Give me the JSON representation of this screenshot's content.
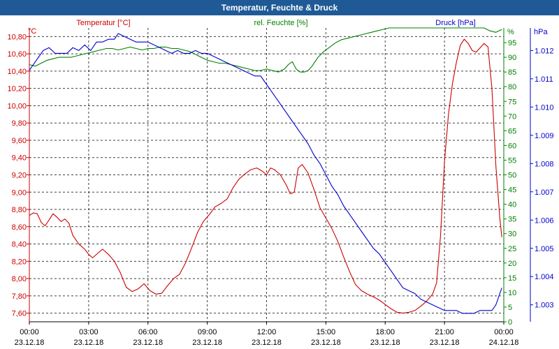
{
  "title": "Temperatur, Feuchte & Druck",
  "colors": {
    "title_bg": "#1f5a96",
    "temperature": "#cc0000",
    "humidity": "#008000",
    "pressure": "#0000cc",
    "grid": "#000000"
  },
  "chart_data": {
    "type": "line",
    "title": "Temperatur, Feuchte & Druck",
    "x_ticks": [
      {
        "time": "00:00",
        "date": "23.12.18",
        "hour": 0
      },
      {
        "time": "03:00",
        "date": "23.12.18",
        "hour": 3
      },
      {
        "time": "06:00",
        "date": "23.12.18",
        "hour": 6
      },
      {
        "time": "09:00",
        "date": "23.12.18",
        "hour": 9
      },
      {
        "time": "12:00",
        "date": "23.12.18",
        "hour": 12
      },
      {
        "time": "15:00",
        "date": "23.12.18",
        "hour": 15
      },
      {
        "time": "18:00",
        "date": "23.12.18",
        "hour": 18
      },
      {
        "time": "21:00",
        "date": "23.12.18",
        "hour": 21
      },
      {
        "time": "00:00",
        "date": "24.12.18",
        "hour": 24
      }
    ],
    "xlim": [
      0,
      24
    ],
    "axes": {
      "temperature": {
        "label": "Temperatur [°C]",
        "unit": "°C",
        "range": [
          7.5,
          10.9
        ],
        "ticks": [
          "7,60",
          "7,80",
          "8,00",
          "8,20",
          "8,40",
          "8,60",
          "8,80",
          "9,00",
          "9,20",
          "9,40",
          "9,60",
          "9,80",
          "10,00",
          "10,20",
          "10,40",
          "10,60",
          "10,80"
        ],
        "tick_values": [
          7.6,
          7.8,
          8.0,
          8.2,
          8.4,
          8.6,
          8.8,
          9.0,
          9.2,
          9.4,
          9.6,
          9.8,
          10.0,
          10.2,
          10.4,
          10.6,
          10.8
        ]
      },
      "humidity": {
        "label": "rel. Feuchte [%]",
        "unit": "%",
        "range": [
          0,
          100
        ],
        "ticks": [
          "0",
          "5",
          "10",
          "15",
          "20",
          "25",
          "30",
          "35",
          "40",
          "45",
          "50",
          "55",
          "60",
          "65",
          "70",
          "75",
          "80",
          "85",
          "90",
          "95"
        ],
        "tick_values": [
          0,
          5,
          10,
          15,
          20,
          25,
          30,
          35,
          40,
          45,
          50,
          55,
          60,
          65,
          70,
          75,
          80,
          85,
          90,
          95
        ]
      },
      "pressure": {
        "label": "Druck [hPa]",
        "unit": "hPa",
        "range": [
          1002.4,
          1012.8
        ],
        "ticks": [
          "1.003",
          "1.004",
          "1.005",
          "1.006",
          "1.007",
          "1.008",
          "1.009",
          "1.010",
          "1.011",
          "1.012"
        ],
        "tick_values": [
          1003,
          1004,
          1005,
          1006,
          1007,
          1008,
          1009,
          1010,
          1011,
          1012
        ]
      }
    },
    "series": [
      {
        "name": "Temperatur [°C]",
        "axis": "temperature",
        "points": [
          [
            0,
            8.73
          ],
          [
            0.2,
            8.76
          ],
          [
            0.4,
            8.75
          ],
          [
            0.6,
            8.65
          ],
          [
            0.8,
            8.61
          ],
          [
            1.0,
            8.68
          ],
          [
            1.2,
            8.75
          ],
          [
            1.4,
            8.71
          ],
          [
            1.6,
            8.66
          ],
          [
            1.8,
            8.69
          ],
          [
            2.0,
            8.64
          ],
          [
            2.2,
            8.5
          ],
          [
            2.5,
            8.4
          ],
          [
            2.8,
            8.34
          ],
          [
            3.0,
            8.28
          ],
          [
            3.2,
            8.24
          ],
          [
            3.5,
            8.3
          ],
          [
            3.7,
            8.34
          ],
          [
            4.0,
            8.28
          ],
          [
            4.3,
            8.2
          ],
          [
            4.6,
            8.07
          ],
          [
            4.9,
            7.9
          ],
          [
            5.2,
            7.85
          ],
          [
            5.5,
            7.88
          ],
          [
            5.8,
            7.94
          ],
          [
            6.1,
            7.86
          ],
          [
            6.4,
            7.82
          ],
          [
            6.7,
            7.83
          ],
          [
            7.0,
            7.92
          ],
          [
            7.3,
            8.0
          ],
          [
            7.6,
            8.05
          ],
          [
            7.9,
            8.18
          ],
          [
            8.2,
            8.35
          ],
          [
            8.5,
            8.53
          ],
          [
            8.8,
            8.66
          ],
          [
            9.1,
            8.74
          ],
          [
            9.4,
            8.83
          ],
          [
            9.7,
            8.87
          ],
          [
            10.0,
            8.92
          ],
          [
            10.3,
            9.05
          ],
          [
            10.6,
            9.15
          ],
          [
            10.9,
            9.21
          ],
          [
            11.2,
            9.26
          ],
          [
            11.5,
            9.28
          ],
          [
            11.8,
            9.24
          ],
          [
            12.0,
            9.2
          ],
          [
            12.2,
            9.28
          ],
          [
            12.4,
            9.26
          ],
          [
            12.7,
            9.2
          ],
          [
            13.0,
            9.08
          ],
          [
            13.2,
            8.98
          ],
          [
            13.4,
            9.0
          ],
          [
            13.6,
            9.28
          ],
          [
            13.8,
            9.32
          ],
          [
            14.1,
            9.22
          ],
          [
            14.4,
            9.03
          ],
          [
            14.7,
            8.82
          ],
          [
            15.0,
            8.7
          ],
          [
            15.3,
            8.58
          ],
          [
            15.6,
            8.43
          ],
          [
            15.9,
            8.25
          ],
          [
            16.2,
            8.08
          ],
          [
            16.5,
            7.93
          ],
          [
            16.8,
            7.86
          ],
          [
            17.1,
            7.82
          ],
          [
            17.4,
            7.79
          ],
          [
            17.7,
            7.75
          ],
          [
            18.0,
            7.7
          ],
          [
            18.3,
            7.65
          ],
          [
            18.6,
            7.61
          ],
          [
            18.9,
            7.6
          ],
          [
            19.2,
            7.61
          ],
          [
            19.5,
            7.63
          ],
          [
            19.8,
            7.68
          ],
          [
            20.1,
            7.74
          ],
          [
            20.4,
            7.82
          ],
          [
            20.6,
            7.95
          ],
          [
            20.8,
            8.5
          ],
          [
            21.0,
            9.35
          ],
          [
            21.2,
            9.9
          ],
          [
            21.4,
            10.25
          ],
          [
            21.6,
            10.5
          ],
          [
            21.8,
            10.7
          ],
          [
            22.0,
            10.77
          ],
          [
            22.2,
            10.72
          ],
          [
            22.4,
            10.64
          ],
          [
            22.6,
            10.62
          ],
          [
            22.8,
            10.67
          ],
          [
            23.0,
            10.72
          ],
          [
            23.2,
            10.68
          ],
          [
            23.4,
            10.2
          ],
          [
            23.6,
            9.3
          ],
          [
            23.8,
            8.7
          ],
          [
            23.9,
            8.48
          ]
        ]
      },
      {
        "name": "rel. Feuchte [%]",
        "axis": "humidity",
        "points": [
          [
            0,
            87.5
          ],
          [
            0.3,
            87.0
          ],
          [
            0.6,
            88.0
          ],
          [
            0.9,
            89.0
          ],
          [
            1.2,
            89.5
          ],
          [
            1.5,
            90.0
          ],
          [
            1.8,
            90.0
          ],
          [
            2.1,
            90.0
          ],
          [
            2.4,
            90.5
          ],
          [
            2.7,
            91.0
          ],
          [
            3.0,
            91.5
          ],
          [
            3.3,
            92.0
          ],
          [
            3.6,
            92.5
          ],
          [
            3.9,
            93.0
          ],
          [
            4.2,
            93.0
          ],
          [
            4.5,
            92.5
          ],
          [
            4.8,
            93.0
          ],
          [
            5.1,
            93.5
          ],
          [
            5.4,
            93.0
          ],
          [
            5.7,
            92.5
          ],
          [
            6.0,
            93.0
          ],
          [
            6.3,
            93.0
          ],
          [
            6.6,
            93.5
          ],
          [
            6.9,
            93.5
          ],
          [
            7.2,
            93.0
          ],
          [
            7.5,
            93.0
          ],
          [
            7.8,
            92.5
          ],
          [
            8.1,
            92.0
          ],
          [
            8.4,
            91.0
          ],
          [
            8.7,
            90.0
          ],
          [
            9.0,
            89.0
          ],
          [
            9.3,
            88.5
          ],
          [
            9.6,
            88.0
          ],
          [
            9.9,
            88.0
          ],
          [
            10.2,
            87.5
          ],
          [
            10.5,
            87.0
          ],
          [
            10.8,
            86.5
          ],
          [
            11.1,
            86.0
          ],
          [
            11.4,
            85.5
          ],
          [
            11.7,
            85.5
          ],
          [
            12.0,
            86.0
          ],
          [
            12.3,
            85.5
          ],
          [
            12.6,
            85.0
          ],
          [
            12.9,
            86.0
          ],
          [
            13.1,
            87.5
          ],
          [
            13.3,
            88.5
          ],
          [
            13.5,
            86.0
          ],
          [
            13.7,
            85.0
          ],
          [
            13.9,
            85.0
          ],
          [
            14.1,
            85.5
          ],
          [
            14.3,
            87.0
          ],
          [
            14.6,
            90.0
          ],
          [
            14.9,
            92.0
          ],
          [
            15.2,
            93.5
          ],
          [
            15.5,
            95.0
          ],
          [
            15.8,
            96.0
          ],
          [
            16.1,
            96.5
          ],
          [
            16.4,
            97.0
          ],
          [
            16.7,
            97.5
          ],
          [
            17.0,
            98.0
          ],
          [
            17.3,
            98.5
          ],
          [
            17.6,
            99.0
          ],
          [
            17.9,
            99.5
          ],
          [
            18.2,
            100.0
          ],
          [
            18.5,
            100.0
          ],
          [
            18.8,
            100.0
          ],
          [
            19.1,
            100.0
          ],
          [
            23.0,
            100.0
          ],
          [
            23.3,
            99.0
          ],
          [
            23.6,
            98.5
          ],
          [
            23.9,
            99.5
          ]
        ]
      },
      {
        "name": "Druck [hPa]",
        "axis": "pressure",
        "points": [
          [
            0,
            1011.3
          ],
          [
            0.2,
            1011.5
          ],
          [
            0.5,
            1011.8
          ],
          [
            0.7,
            1012.0
          ],
          [
            1.0,
            1012.1
          ],
          [
            1.3,
            1011.9
          ],
          [
            1.6,
            1011.9
          ],
          [
            1.9,
            1011.9
          ],
          [
            2.2,
            1012.1
          ],
          [
            2.5,
            1012.0
          ],
          [
            2.8,
            1012.2
          ],
          [
            3.1,
            1012.0
          ],
          [
            3.4,
            1012.3
          ],
          [
            3.7,
            1012.3
          ],
          [
            4.0,
            1012.4
          ],
          [
            4.3,
            1012.4
          ],
          [
            4.5,
            1012.6
          ],
          [
            4.8,
            1012.5
          ],
          [
            5.1,
            1012.4
          ],
          [
            5.4,
            1012.3
          ],
          [
            5.7,
            1012.3
          ],
          [
            6.0,
            1012.3
          ],
          [
            6.3,
            1012.2
          ],
          [
            6.6,
            1012.1
          ],
          [
            6.9,
            1012.0
          ],
          [
            7.2,
            1011.9
          ],
          [
            7.5,
            1012.0
          ],
          [
            7.8,
            1011.9
          ],
          [
            8.1,
            1011.9
          ],
          [
            8.4,
            1012.0
          ],
          [
            8.7,
            1011.9
          ],
          [
            9.0,
            1011.9
          ],
          [
            9.3,
            1011.8
          ],
          [
            9.6,
            1011.7
          ],
          [
            9.9,
            1011.6
          ],
          [
            10.2,
            1011.5
          ],
          [
            10.5,
            1011.4
          ],
          [
            10.8,
            1011.3
          ],
          [
            11.1,
            1011.2
          ],
          [
            11.4,
            1011.1
          ],
          [
            11.7,
            1011.1
          ],
          [
            12.0,
            1010.8
          ],
          [
            12.3,
            1010.5
          ],
          [
            12.6,
            1010.2
          ],
          [
            12.9,
            1009.9
          ],
          [
            13.2,
            1009.6
          ],
          [
            13.5,
            1009.3
          ],
          [
            13.8,
            1009.0
          ],
          [
            14.1,
            1008.7
          ],
          [
            14.4,
            1008.3
          ],
          [
            14.7,
            1008.0
          ],
          [
            15.0,
            1007.6
          ],
          [
            15.3,
            1007.2
          ],
          [
            15.6,
            1006.9
          ],
          [
            15.9,
            1006.5
          ],
          [
            16.2,
            1006.2
          ],
          [
            16.5,
            1005.9
          ],
          [
            16.8,
            1005.6
          ],
          [
            17.1,
            1005.3
          ],
          [
            17.4,
            1005.0
          ],
          [
            17.7,
            1004.8
          ],
          [
            18.0,
            1004.5
          ],
          [
            18.3,
            1004.2
          ],
          [
            18.6,
            1003.9
          ],
          [
            18.9,
            1003.6
          ],
          [
            19.2,
            1003.5
          ],
          [
            19.5,
            1003.4
          ],
          [
            19.8,
            1003.2
          ],
          [
            20.1,
            1003.1
          ],
          [
            20.4,
            1003.0
          ],
          [
            20.7,
            1002.9
          ],
          [
            21.0,
            1002.8
          ],
          [
            21.6,
            1002.8
          ],
          [
            21.9,
            1002.7
          ],
          [
            22.2,
            1002.7
          ],
          [
            22.5,
            1002.7
          ],
          [
            22.8,
            1002.8
          ],
          [
            23.4,
            1002.8
          ],
          [
            23.6,
            1003.0
          ],
          [
            23.8,
            1003.4
          ],
          [
            23.9,
            1003.6
          ]
        ]
      }
    ]
  }
}
